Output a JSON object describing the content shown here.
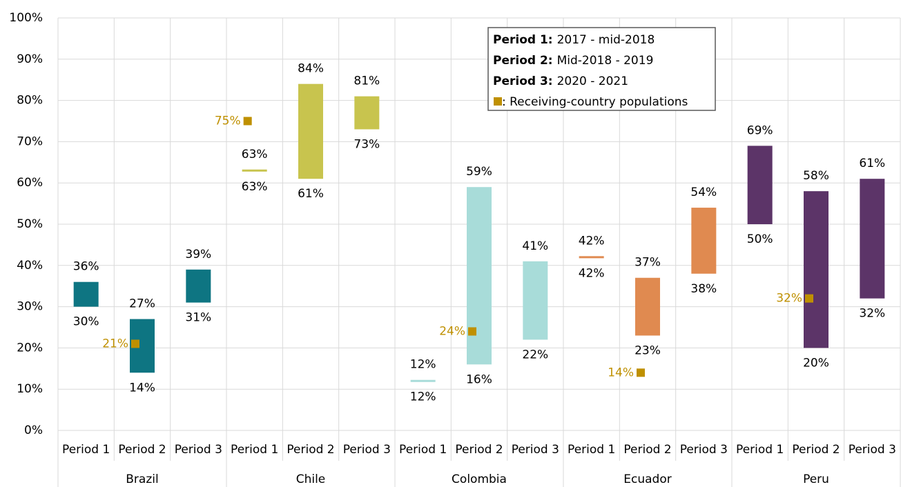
{
  "chart_data": {
    "type": "range-bar",
    "ylim": [
      0,
      100
    ],
    "yticks": [
      {
        "value": 0,
        "label": "0%"
      },
      {
        "value": 10,
        "label": "10%"
      },
      {
        "value": 20,
        "label": "20%"
      },
      {
        "value": 30,
        "label": "30%"
      },
      {
        "value": 40,
        "label": "40%"
      },
      {
        "value": 50,
        "label": "50%"
      },
      {
        "value": 60,
        "label": "60%"
      },
      {
        "value": 70,
        "label": "70%"
      },
      {
        "value": 80,
        "label": "80%"
      },
      {
        "value": 90,
        "label": "90%"
      },
      {
        "value": 100,
        "label": "100%"
      }
    ],
    "grid": true,
    "marker_color": "#bf9000",
    "groups": [
      {
        "name": "Brazil",
        "color": "#0e7582",
        "categories": [
          "Period 1",
          "Period 2",
          "Period 3"
        ],
        "low": [
          30,
          14,
          31
        ],
        "high": [
          36,
          27,
          39
        ],
        "low_labels": [
          "30%",
          "14%",
          "31%"
        ],
        "high_labels": [
          "36%",
          "27%",
          "39%"
        ],
        "markers": [
          null,
          21,
          null
        ],
        "marker_labels": [
          null,
          "21%",
          null
        ]
      },
      {
        "name": "Chile",
        "color": "#c8c44e",
        "categories": [
          "Period 1",
          "Period 2",
          "Period 3"
        ],
        "low": [
          63,
          61,
          73
        ],
        "high": [
          63,
          84,
          81
        ],
        "low_labels": [
          "63%",
          "61%",
          "73%"
        ],
        "high_labels": [
          "63%",
          "84%",
          "81%"
        ],
        "markers": [
          75,
          null,
          null
        ],
        "marker_labels": [
          "75%",
          null,
          null
        ]
      },
      {
        "name": "Colombia",
        "color": "#a8dcd9",
        "categories": [
          "Period 1",
          "Period 2",
          "Period 3"
        ],
        "low": [
          12,
          16,
          22
        ],
        "high": [
          12,
          59,
          41
        ],
        "low_labels": [
          "12%",
          "16%",
          "22%"
        ],
        "high_labels": [
          "12%",
          "59%",
          "41%"
        ],
        "markers": [
          null,
          24,
          null
        ],
        "marker_labels": [
          null,
          "24%",
          null
        ]
      },
      {
        "name": "Ecuador",
        "color": "#e08a50",
        "categories": [
          "Period 1",
          "Period 2",
          "Period 3"
        ],
        "low": [
          42,
          23,
          38
        ],
        "high": [
          42,
          37,
          54
        ],
        "low_labels": [
          "42%",
          "23%",
          "38%"
        ],
        "high_labels": [
          "42%",
          "37%",
          "54%"
        ],
        "markers": [
          null,
          14,
          null
        ],
        "marker_labels": [
          null,
          "14%",
          null
        ]
      },
      {
        "name": "Peru",
        "color": "#5c3468",
        "categories": [
          "Period 1",
          "Period 2",
          "Period 3"
        ],
        "low": [
          50,
          20,
          32
        ],
        "high": [
          69,
          58,
          61
        ],
        "low_labels": [
          "50%",
          "20%",
          "32%"
        ],
        "high_labels": [
          "69%",
          "58%",
          "61%"
        ],
        "markers": [
          null,
          32,
          null
        ],
        "marker_labels": [
          null,
          "32%",
          null
        ]
      }
    ],
    "legend": {
      "entries": [
        {
          "term": "Period 1:",
          "text": "2017 - mid-2018"
        },
        {
          "term": "Period 2:",
          "text": "Mid-2018 - 2019"
        },
        {
          "term": "Period 3:",
          "text": "2020 - 2021"
        }
      ],
      "marker_text": ": Receiving-country populations"
    }
  }
}
